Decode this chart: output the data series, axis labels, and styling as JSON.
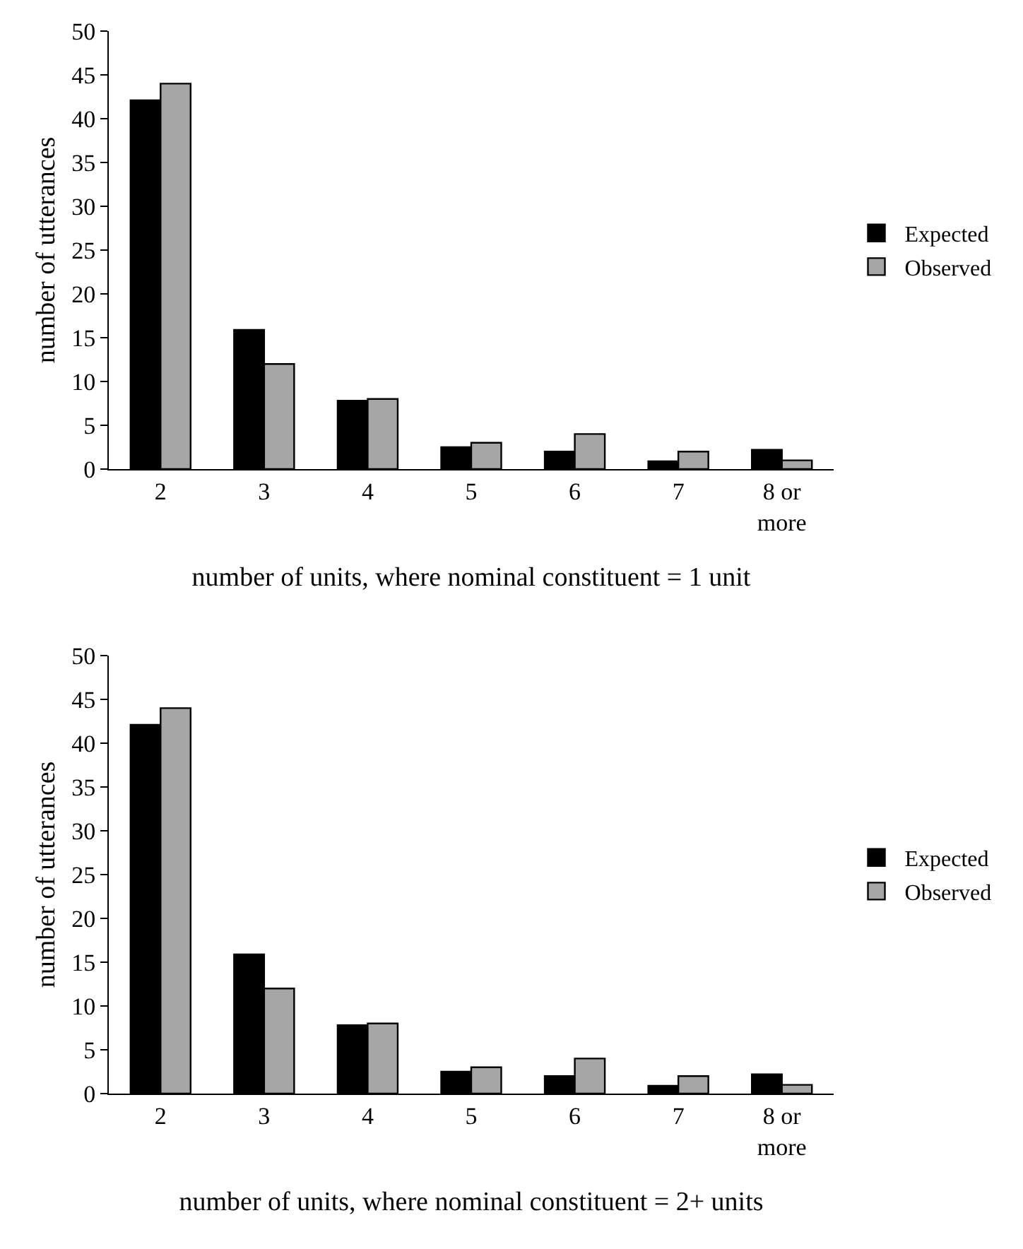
{
  "chart_data": [
    {
      "type": "bar",
      "categories": [
        "2",
        "3",
        "4",
        "5",
        "6",
        "7",
        "8 or\nmore"
      ],
      "xlabel": "number of units, where nominal constituent = 1 unit",
      "ylabel": "number of utterances",
      "ylim": [
        0,
        50
      ],
      "yticks": [
        0,
        5,
        10,
        15,
        20,
        25,
        30,
        35,
        40,
        45,
        50
      ],
      "grid": false,
      "legend": "right",
      "series": [
        {
          "name": "Expected",
          "color": "#000000",
          "values": [
            42.1,
            15.9,
            7.8,
            2.5,
            2.0,
            0.9,
            2.2
          ]
        },
        {
          "name": "Observed",
          "color": "#a6a6a6",
          "values": [
            44,
            12,
            8,
            3,
            4,
            2,
            1
          ]
        }
      ]
    },
    {
      "type": "bar",
      "categories": [
        "2",
        "3",
        "4",
        "5",
        "6",
        "7",
        "8 or\nmore"
      ],
      "xlabel": "number of units, where nominal constituent = 2+ units",
      "ylabel": "number of utterances",
      "ylim": [
        0,
        50
      ],
      "yticks": [
        0,
        5,
        10,
        15,
        20,
        25,
        30,
        35,
        40,
        45,
        50
      ],
      "grid": false,
      "legend": "right",
      "series": [
        {
          "name": "Expected",
          "color": "#000000",
          "values": [
            42.1,
            15.9,
            7.8,
            2.5,
            2.0,
            0.9,
            2.2
          ]
        },
        {
          "name": "Observed",
          "color": "#a6a6a6",
          "values": [
            44,
            12,
            8,
            3,
            4,
            2,
            1
          ]
        }
      ]
    }
  ]
}
